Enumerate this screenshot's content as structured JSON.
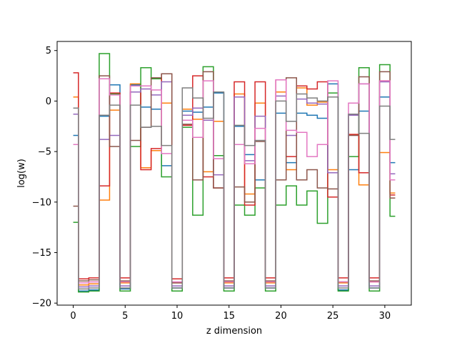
{
  "chart_data": {
    "type": "line",
    "step": "mid",
    "title": "",
    "xlabel": "z dimension",
    "ylabel": "log(w)",
    "xlim": [
      -1.55,
      32.55
    ],
    "ylim": [
      -20.2,
      5.9
    ],
    "grid": false,
    "legend": "none",
    "x_ticks": [
      0,
      5,
      10,
      15,
      20,
      25,
      30
    ],
    "x_tick_labels": [
      "0",
      "5",
      "10",
      "15",
      "20",
      "25",
      "30"
    ],
    "y_ticks": [
      -20,
      -15,
      -10,
      -5,
      0,
      5
    ],
    "y_tick_labels": [
      "−20",
      "−15",
      "−10",
      "−5",
      "0",
      "5"
    ],
    "x": [
      0,
      1,
      2,
      3,
      4,
      5,
      6,
      7,
      8,
      9,
      10,
      11,
      12,
      13,
      14,
      15,
      16,
      17,
      18,
      19,
      20,
      21,
      22,
      23,
      24,
      25,
      26,
      27,
      28,
      29,
      30,
      31
    ],
    "series": [
      {
        "color": "#1f77b4",
        "values": [
          -3.4,
          -18.8,
          -18.7,
          -1.5,
          1.6,
          -18.6,
          1.6,
          -0.6,
          -0.8,
          -6.4,
          -18.5,
          -1.0,
          -1.1,
          -0.6,
          0.8,
          -18.5,
          -2.5,
          -5.3,
          -7.8,
          -18.5,
          -1.2,
          -6.1,
          -1.2,
          -1.4,
          -1.7,
          1.7,
          -18.7,
          -6.8,
          -1.0,
          -18.5,
          0.4,
          -6.1
        ]
      },
      {
        "color": "#ff7f0e",
        "values": [
          0.4,
          -18.2,
          -18.1,
          -9.8,
          -0.9,
          -18.0,
          1.7,
          -6.6,
          -4.9,
          -0.2,
          -18.0,
          -0.8,
          -1.8,
          -7.0,
          -2.0,
          -18.0,
          0.7,
          -9.2,
          -0.2,
          -18.0,
          0.9,
          -6.8,
          1.3,
          -0.4,
          -0.1,
          -6.8,
          -18.0,
          -3.3,
          -8.3,
          -17.9,
          -5.1,
          -9.1
        ]
      },
      {
        "color": "#2ca02c",
        "values": [
          -12.0,
          -18.9,
          -18.8,
          4.7,
          0.7,
          -18.8,
          -4.5,
          3.3,
          2.2,
          -7.5,
          -18.8,
          -2.6,
          -11.3,
          3.4,
          -5.4,
          -18.8,
          -10.3,
          -11.3,
          -8.6,
          -18.8,
          -10.3,
          -8.4,
          -10.3,
          -8.9,
          -12.1,
          0.8,
          -18.8,
          -5.5,
          3.3,
          -18.8,
          3.6,
          -11.4
        ]
      },
      {
        "color": "#d62728",
        "values": [
          2.8,
          -17.6,
          -17.5,
          -8.4,
          0.8,
          -17.5,
          0.9,
          -6.8,
          -4.7,
          2.7,
          -17.6,
          -2.4,
          2.5,
          -7.5,
          -8.6,
          -17.5,
          1.9,
          -10.3,
          1.9,
          -17.5,
          2.1,
          -5.5,
          1.5,
          1.2,
          1.9,
          -9.5,
          -17.5,
          -3.3,
          -7.1,
          -17.5,
          2.0,
          -9.3
        ]
      },
      {
        "color": "#9467bd",
        "values": [
          -1.3,
          -18.4,
          -18.3,
          -3.8,
          -3.4,
          -18.3,
          0.9,
          1.2,
          0.6,
          1.9,
          -18.3,
          -1.4,
          -0.7,
          -1.9,
          -7.3,
          -18.3,
          0.4,
          -5.9,
          -1.5,
          -18.3,
          0.5,
          -3.4,
          0.2,
          -0.2,
          -0.3,
          -7.1,
          -18.3,
          -1.4,
          1.7,
          -18.3,
          1.9,
          -7.2
        ]
      },
      {
        "color": "#8c564b",
        "values": [
          -10.4,
          -17.8,
          -17.7,
          2.5,
          -4.5,
          -17.8,
          -3.9,
          -2.6,
          2.3,
          2.7,
          -18.0,
          -2.3,
          -7.8,
          2.9,
          -8.6,
          -17.8,
          -8.5,
          -10.0,
          -4.0,
          -17.8,
          -7.8,
          2.3,
          -7.8,
          -6.8,
          -8.6,
          -8.7,
          -17.9,
          -3.4,
          2.4,
          -17.8,
          2.9,
          -9.6
        ]
      },
      {
        "color": "#e377c2",
        "values": [
          -4.3,
          -18.0,
          -17.9,
          2.2,
          0.6,
          -17.9,
          1.5,
          1.5,
          1.1,
          -5.2,
          -17.9,
          -1.9,
          -3.6,
          2.0,
          -5.7,
          -17.9,
          -4.3,
          -6.2,
          -2.7,
          -17.9,
          2.1,
          -2.9,
          -3.1,
          -5.5,
          -4.3,
          2.0,
          -17.9,
          -0.2,
          1.7,
          -17.9,
          2.0,
          -7.8
        ]
      },
      {
        "color": "#7f7f7f",
        "values": [
          -0.7,
          -18.6,
          -18.5,
          -1.4,
          -0.4,
          -18.5,
          -0.4,
          -2.6,
          -2.5,
          -4.4,
          -18.5,
          1.3,
          0.3,
          -1.7,
          0.9,
          -18.5,
          -2.4,
          -4.4,
          -3.9,
          -18.5,
          0.0,
          -2.0,
          0.7,
          0.3,
          0.0,
          0.4,
          -18.5,
          -1.3,
          -3.2,
          -18.5,
          -0.5,
          -3.8
        ]
      }
    ]
  }
}
